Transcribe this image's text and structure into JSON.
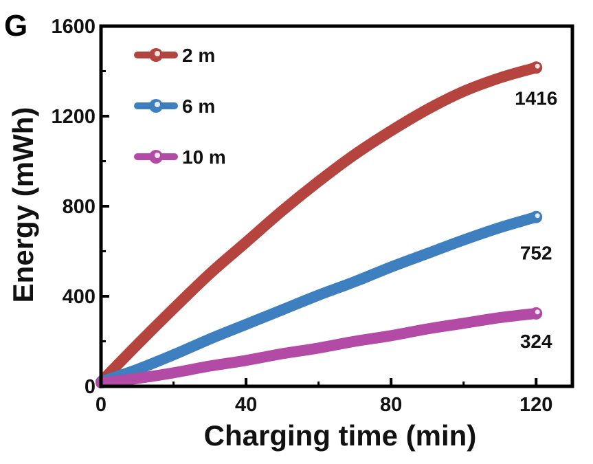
{
  "panel_label": "G",
  "chart_data": {
    "type": "line",
    "xlabel": "Charging time (min)",
    "ylabel": "Energy (mWh)",
    "xlim": [
      0,
      130
    ],
    "ylim": [
      0,
      1600
    ],
    "xticks": [
      0,
      40,
      80,
      120
    ],
    "yticks": [
      0,
      400,
      800,
      1200,
      1600
    ],
    "x_tick_labels": [
      "0",
      "40",
      "80",
      "120"
    ],
    "y_tick_labels": [
      "0",
      "400",
      "800",
      "1200",
      "1600"
    ],
    "grid": false,
    "legend_position": "top-left",
    "series": [
      {
        "name": "2 m",
        "color": "#b5443f",
        "x": [
          0,
          10,
          20,
          30,
          40,
          50,
          60,
          70,
          80,
          90,
          100,
          110,
          120
        ],
        "y": [
          20,
          185,
          345,
          500,
          640,
          780,
          910,
          1030,
          1135,
          1230,
          1310,
          1370,
          1416
        ],
        "end_label": "1416"
      },
      {
        "name": "6 m",
        "color": "#3d7fbf",
        "x": [
          0,
          10,
          20,
          30,
          40,
          50,
          60,
          70,
          80,
          90,
          100,
          110,
          120
        ],
        "y": [
          20,
          75,
          140,
          210,
          275,
          340,
          405,
          465,
          530,
          590,
          650,
          705,
          752
        ],
        "end_label": "752"
      },
      {
        "name": "10 m",
        "color": "#b34aa6",
        "x": [
          0,
          10,
          20,
          30,
          40,
          50,
          60,
          70,
          80,
          90,
          100,
          110,
          120
        ],
        "y": [
          15,
          35,
          60,
          90,
          115,
          145,
          170,
          200,
          225,
          255,
          280,
          305,
          324
        ],
        "end_label": "324"
      }
    ]
  }
}
